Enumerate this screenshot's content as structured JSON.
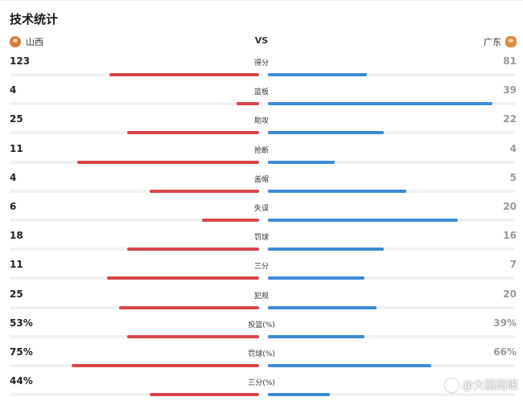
{
  "page": {
    "title": "技术统计"
  },
  "teams": {
    "left": {
      "name": "山西",
      "logo_icon": "shanxi-team-logo"
    },
    "vs": "VS",
    "right": {
      "name": "广东",
      "logo_icon": "guangdong-team-logo"
    }
  },
  "colors": {
    "left_bar": "#d8454b",
    "right_bar": "#3e8ad8",
    "track": "#f0f1f4"
  },
  "stats": [
    {
      "label": "得分",
      "left": "123",
      "right": "81",
      "left_fill": 0.6,
      "right_fill": 0.4
    },
    {
      "label": "篮板",
      "left": "4",
      "right": "39",
      "left_fill": 0.09,
      "right_fill": 0.91
    },
    {
      "label": "助攻",
      "left": "25",
      "right": "22",
      "left_fill": 0.53,
      "right_fill": 0.47
    },
    {
      "label": "抢断",
      "left": "11",
      "right": "4",
      "left_fill": 0.73,
      "right_fill": 0.27
    },
    {
      "label": "盖帽",
      "left": "4",
      "right": "5",
      "left_fill": 0.44,
      "right_fill": 0.56
    },
    {
      "label": "失误",
      "left": "6",
      "right": "20",
      "left_fill": 0.23,
      "right_fill": 0.77
    },
    {
      "label": "罚球",
      "left": "18",
      "right": "16",
      "left_fill": 0.53,
      "right_fill": 0.47
    },
    {
      "label": "三分",
      "left": "11",
      "right": "7",
      "left_fill": 0.61,
      "right_fill": 0.39
    },
    {
      "label": "犯规",
      "left": "25",
      "right": "20",
      "left_fill": 0.56,
      "right_fill": 0.44
    },
    {
      "label": "投篮(%)",
      "left": "53%",
      "right": "39%",
      "left_fill": 0.53,
      "right_fill": 0.39
    },
    {
      "label": "罚球(%)",
      "left": "75%",
      "right": "66%",
      "left_fill": 0.75,
      "right_fill": 0.66
    },
    {
      "label": "三分(%)",
      "left": "44%",
      "right": "",
      "left_fill": 0.44,
      "right_fill": 0.25
    }
  ],
  "watermark": {
    "text": "@大国鹰眼",
    "icon": "watermark-logo-icon"
  }
}
